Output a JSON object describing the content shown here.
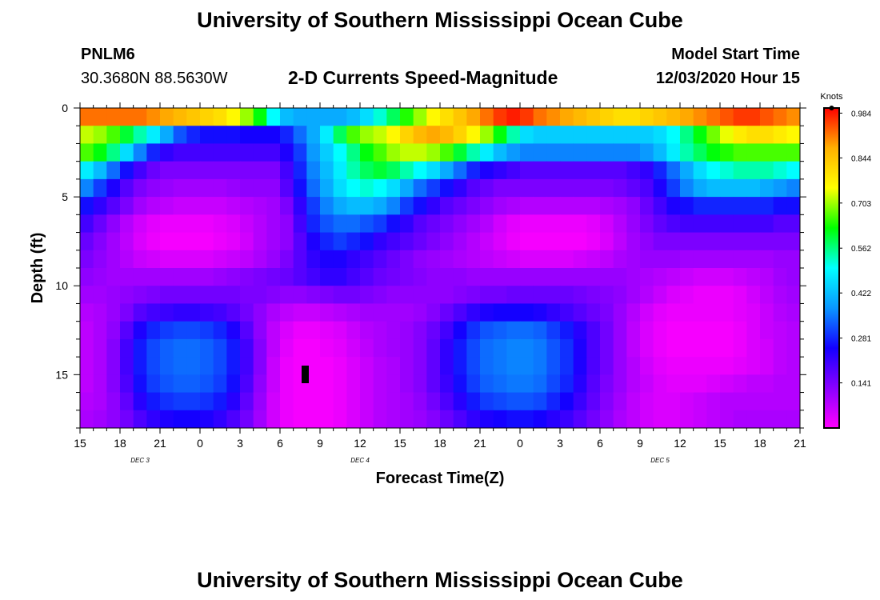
{
  "header": {
    "title": "University of Southern Mississippi Ocean Cube",
    "station": "PNLM6",
    "coords": "30.3680N 88.5630W",
    "subtitle": "2-D Currents Speed-Magnitude",
    "model_label": "Model Start Time",
    "model_time": "12/03/2020 Hour 15"
  },
  "footer": {
    "title": "University of Southern Mississippi Ocean Cube"
  },
  "chart_data": {
    "type": "heatmap",
    "title": "2-D Currents Speed-Magnitude",
    "xlabel": "Forecast Time(Z)",
    "ylabel": "Depth (ft)",
    "x_tick_labels": [
      "15",
      "18",
      "21",
      "0",
      "3",
      "6",
      "9",
      "12",
      "15",
      "18",
      "21",
      "0",
      "3",
      "6",
      "9",
      "12",
      "15",
      "18",
      "21"
    ],
    "x_hours": [
      0,
      54
    ],
    "date_labels": [
      {
        "label": "DEC 3",
        "hour": 4.5
      },
      {
        "label": "DEC 4",
        "hour": 21
      },
      {
        "label": "DEC 5",
        "hour": 43.5
      }
    ],
    "y_ticks": [
      0,
      5,
      10,
      15
    ],
    "y_range": [
      0,
      18
    ],
    "y_reversed": true,
    "colorbar": {
      "title": "Knots",
      "ticks": [
        "0.984",
        "0.844",
        "0.703",
        "0.562",
        "0.422",
        "0.281",
        "0.141"
      ],
      "tick_values": [
        0.984,
        0.844,
        0.703,
        0.562,
        0.422,
        0.281,
        0.141
      ],
      "range": [
        0.0,
        1.0
      ]
    },
    "colorscale": [
      "#ff00ff",
      "#8a00ff",
      "#1400ff",
      "#0a96ff",
      "#00ffff",
      "#00ff00",
      "#ffff00",
      "#ffb000",
      "#ff0000"
    ],
    "columns": 54,
    "rows": [
      {
        "depth": 0,
        "values": [
          0.92,
          0.92,
          0.92,
          0.92,
          0.92,
          0.9,
          0.88,
          0.86,
          0.84,
          0.82,
          0.8,
          0.76,
          0.7,
          0.62,
          0.5,
          0.42,
          0.4,
          0.4,
          0.4,
          0.4,
          0.42,
          0.46,
          0.52,
          0.58,
          0.64,
          0.7,
          0.76,
          0.8,
          0.84,
          0.88,
          0.92,
          0.96,
          0.98,
          0.96,
          0.92,
          0.9,
          0.88,
          0.86,
          0.84,
          0.82,
          0.8,
          0.8,
          0.82,
          0.84,
          0.86,
          0.88,
          0.9,
          0.92,
          0.94,
          0.96,
          0.96,
          0.94,
          0.92,
          0.9
        ]
      },
      {
        "depth": 1,
        "values": [
          0.72,
          0.7,
          0.66,
          0.6,
          0.54,
          0.48,
          0.4,
          0.32,
          0.28,
          0.26,
          0.26,
          0.26,
          0.25,
          0.25,
          0.25,
          0.28,
          0.34,
          0.4,
          0.48,
          0.58,
          0.66,
          0.7,
          0.72,
          0.76,
          0.82,
          0.86,
          0.88,
          0.86,
          0.82,
          0.76,
          0.7,
          0.62,
          0.54,
          0.46,
          0.44,
          0.44,
          0.44,
          0.44,
          0.44,
          0.44,
          0.44,
          0.44,
          0.44,
          0.46,
          0.5,
          0.56,
          0.62,
          0.68,
          0.74,
          0.78,
          0.8,
          0.8,
          0.78,
          0.76
        ]
      },
      {
        "depth": 2,
        "values": [
          0.66,
          0.62,
          0.56,
          0.46,
          0.36,
          0.28,
          0.22,
          0.2,
          0.2,
          0.2,
          0.2,
          0.2,
          0.2,
          0.2,
          0.2,
          0.24,
          0.3,
          0.38,
          0.44,
          0.5,
          0.56,
          0.62,
          0.66,
          0.7,
          0.72,
          0.72,
          0.7,
          0.66,
          0.6,
          0.54,
          0.48,
          0.42,
          0.38,
          0.36,
          0.36,
          0.36,
          0.36,
          0.36,
          0.36,
          0.36,
          0.36,
          0.36,
          0.38,
          0.42,
          0.48,
          0.54,
          0.58,
          0.62,
          0.64,
          0.66,
          0.66,
          0.66,
          0.66,
          0.66
        ]
      },
      {
        "depth": 3,
        "values": [
          0.48,
          0.42,
          0.34,
          0.26,
          0.2,
          0.16,
          0.14,
          0.14,
          0.14,
          0.14,
          0.14,
          0.14,
          0.14,
          0.14,
          0.14,
          0.2,
          0.28,
          0.36,
          0.42,
          0.48,
          0.54,
          0.58,
          0.6,
          0.58,
          0.54,
          0.5,
          0.46,
          0.4,
          0.34,
          0.28,
          0.24,
          0.22,
          0.2,
          0.18,
          0.18,
          0.18,
          0.18,
          0.18,
          0.18,
          0.18,
          0.18,
          0.2,
          0.22,
          0.28,
          0.34,
          0.4,
          0.46,
          0.5,
          0.52,
          0.54,
          0.54,
          0.54,
          0.52,
          0.5
        ]
      },
      {
        "depth": 4,
        "values": [
          0.36,
          0.3,
          0.24,
          0.18,
          0.14,
          0.12,
          0.11,
          0.1,
          0.1,
          0.1,
          0.1,
          0.11,
          0.12,
          0.12,
          0.12,
          0.18,
          0.26,
          0.34,
          0.4,
          0.46,
          0.5,
          0.52,
          0.5,
          0.46,
          0.4,
          0.34,
          0.3,
          0.26,
          0.22,
          0.18,
          0.16,
          0.14,
          0.14,
          0.14,
          0.14,
          0.14,
          0.14,
          0.14,
          0.14,
          0.14,
          0.15,
          0.17,
          0.19,
          0.24,
          0.3,
          0.36,
          0.4,
          0.42,
          0.42,
          0.42,
          0.42,
          0.4,
          0.38,
          0.36
        ]
      },
      {
        "depth": 5,
        "values": [
          0.26,
          0.22,
          0.18,
          0.14,
          0.1,
          0.08,
          0.07,
          0.06,
          0.06,
          0.06,
          0.06,
          0.07,
          0.08,
          0.09,
          0.1,
          0.14,
          0.22,
          0.3,
          0.36,
          0.4,
          0.42,
          0.42,
          0.4,
          0.36,
          0.3,
          0.26,
          0.22,
          0.18,
          0.16,
          0.14,
          0.12,
          0.1,
          0.09,
          0.08,
          0.08,
          0.08,
          0.08,
          0.08,
          0.08,
          0.09,
          0.1,
          0.12,
          0.16,
          0.2,
          0.24,
          0.26,
          0.28,
          0.28,
          0.28,
          0.28,
          0.28,
          0.28,
          0.26,
          0.26
        ]
      },
      {
        "depth": 6,
        "values": [
          0.2,
          0.16,
          0.12,
          0.08,
          0.05,
          0.03,
          0.02,
          0.02,
          0.02,
          0.02,
          0.03,
          0.04,
          0.06,
          0.08,
          0.1,
          0.12,
          0.2,
          0.28,
          0.32,
          0.34,
          0.34,
          0.32,
          0.3,
          0.26,
          0.22,
          0.18,
          0.16,
          0.14,
          0.12,
          0.1,
          0.08,
          0.05,
          0.03,
          0.02,
          0.02,
          0.02,
          0.02,
          0.02,
          0.03,
          0.05,
          0.08,
          0.11,
          0.14,
          0.17,
          0.19,
          0.2,
          0.2,
          0.2,
          0.2,
          0.2,
          0.2,
          0.2,
          0.18,
          0.18
        ]
      },
      {
        "depth": 7,
        "values": [
          0.16,
          0.13,
          0.1,
          0.07,
          0.04,
          0.02,
          0.01,
          0.01,
          0.01,
          0.01,
          0.02,
          0.03,
          0.05,
          0.08,
          0.1,
          0.12,
          0.18,
          0.24,
          0.28,
          0.3,
          0.28,
          0.26,
          0.22,
          0.2,
          0.18,
          0.16,
          0.14,
          0.12,
          0.1,
          0.08,
          0.06,
          0.04,
          0.02,
          0.01,
          0.01,
          0.01,
          0.01,
          0.01,
          0.02,
          0.04,
          0.07,
          0.1,
          0.12,
          0.14,
          0.14,
          0.14,
          0.14,
          0.14,
          0.14,
          0.14,
          0.14,
          0.14,
          0.14,
          0.14
        ]
      },
      {
        "depth": 8,
        "values": [
          0.14,
          0.12,
          0.1,
          0.08,
          0.06,
          0.05,
          0.04,
          0.04,
          0.04,
          0.04,
          0.05,
          0.06,
          0.07,
          0.09,
          0.11,
          0.14,
          0.18,
          0.22,
          0.24,
          0.24,
          0.22,
          0.2,
          0.18,
          0.16,
          0.14,
          0.12,
          0.11,
          0.1,
          0.09,
          0.08,
          0.07,
          0.06,
          0.05,
          0.04,
          0.04,
          0.04,
          0.04,
          0.05,
          0.06,
          0.07,
          0.09,
          0.1,
          0.11,
          0.11,
          0.11,
          0.1,
          0.1,
          0.1,
          0.1,
          0.1,
          0.1,
          0.1,
          0.11,
          0.11
        ]
      },
      {
        "depth": 9,
        "values": [
          0.12,
          0.11,
          0.1,
          0.1,
          0.1,
          0.1,
          0.1,
          0.1,
          0.1,
          0.1,
          0.11,
          0.12,
          0.13,
          0.14,
          0.15,
          0.16,
          0.18,
          0.2,
          0.22,
          0.22,
          0.2,
          0.18,
          0.16,
          0.15,
          0.14,
          0.13,
          0.12,
          0.12,
          0.12,
          0.11,
          0.11,
          0.11,
          0.11,
          0.11,
          0.11,
          0.11,
          0.11,
          0.11,
          0.11,
          0.11,
          0.11,
          0.1,
          0.09,
          0.08,
          0.07,
          0.06,
          0.05,
          0.05,
          0.05,
          0.06,
          0.07,
          0.08,
          0.1,
          0.11
        ]
      },
      {
        "depth": 10,
        "values": [
          0.1,
          0.1,
          0.11,
          0.12,
          0.13,
          0.14,
          0.15,
          0.15,
          0.15,
          0.15,
          0.15,
          0.15,
          0.14,
          0.14,
          0.13,
          0.12,
          0.12,
          0.13,
          0.14,
          0.15,
          0.15,
          0.14,
          0.13,
          0.12,
          0.12,
          0.12,
          0.12,
          0.12,
          0.13,
          0.14,
          0.15,
          0.15,
          0.16,
          0.16,
          0.16,
          0.16,
          0.16,
          0.15,
          0.14,
          0.13,
          0.12,
          0.1,
          0.08,
          0.06,
          0.04,
          0.03,
          0.02,
          0.02,
          0.02,
          0.03,
          0.05,
          0.07,
          0.09,
          0.1
        ]
      },
      {
        "depth": 11,
        "values": [
          0.08,
          0.09,
          0.11,
          0.14,
          0.18,
          0.2,
          0.21,
          0.22,
          0.22,
          0.21,
          0.2,
          0.18,
          0.15,
          0.12,
          0.09,
          0.07,
          0.06,
          0.06,
          0.07,
          0.08,
          0.09,
          0.1,
          0.1,
          0.1,
          0.1,
          0.11,
          0.13,
          0.16,
          0.19,
          0.22,
          0.24,
          0.25,
          0.25,
          0.25,
          0.24,
          0.22,
          0.2,
          0.18,
          0.16,
          0.14,
          0.11,
          0.08,
          0.05,
          0.03,
          0.02,
          0.02,
          0.02,
          0.02,
          0.02,
          0.03,
          0.04,
          0.06,
          0.08,
          0.09
        ]
      },
      {
        "depth": 12,
        "values": [
          0.07,
          0.09,
          0.12,
          0.18,
          0.24,
          0.28,
          0.3,
          0.31,
          0.31,
          0.3,
          0.28,
          0.24,
          0.18,
          0.12,
          0.07,
          0.04,
          0.02,
          0.02,
          0.03,
          0.04,
          0.06,
          0.08,
          0.09,
          0.1,
          0.11,
          0.13,
          0.16,
          0.2,
          0.25,
          0.29,
          0.32,
          0.33,
          0.34,
          0.34,
          0.33,
          0.3,
          0.27,
          0.23,
          0.19,
          0.15,
          0.11,
          0.07,
          0.04,
          0.02,
          0.01,
          0.01,
          0.01,
          0.01,
          0.01,
          0.02,
          0.04,
          0.06,
          0.07,
          0.08
        ]
      },
      {
        "depth": 13,
        "values": [
          0.07,
          0.09,
          0.13,
          0.2,
          0.27,
          0.31,
          0.33,
          0.34,
          0.34,
          0.33,
          0.31,
          0.27,
          0.2,
          0.13,
          0.07,
          0.03,
          0.01,
          0.01,
          0.02,
          0.03,
          0.05,
          0.07,
          0.09,
          0.1,
          0.11,
          0.13,
          0.17,
          0.22,
          0.27,
          0.31,
          0.34,
          0.35,
          0.36,
          0.36,
          0.35,
          0.32,
          0.29,
          0.24,
          0.19,
          0.15,
          0.11,
          0.07,
          0.04,
          0.02,
          0.01,
          0.01,
          0.01,
          0.01,
          0.01,
          0.02,
          0.04,
          0.05,
          0.07,
          0.08
        ]
      },
      {
        "depth": 14,
        "values": [
          0.07,
          0.09,
          0.13,
          0.2,
          0.27,
          0.31,
          0.33,
          0.34,
          0.34,
          0.33,
          0.31,
          0.27,
          0.2,
          0.13,
          0.06,
          0.02,
          0.01,
          0.01,
          0.01,
          0.02,
          0.04,
          0.06,
          0.08,
          0.09,
          0.11,
          0.13,
          0.17,
          0.22,
          0.27,
          0.31,
          0.34,
          0.35,
          0.36,
          0.36,
          0.35,
          0.32,
          0.29,
          0.24,
          0.19,
          0.15,
          0.11,
          0.08,
          0.05,
          0.03,
          0.02,
          0.02,
          0.02,
          0.02,
          0.02,
          0.03,
          0.04,
          0.05,
          0.07,
          0.08
        ]
      },
      {
        "depth": 15,
        "values": [
          0.07,
          0.09,
          0.13,
          0.19,
          0.26,
          0.3,
          0.32,
          0.33,
          0.33,
          0.32,
          0.3,
          0.26,
          0.19,
          0.12,
          0.06,
          0.02,
          0.01,
          0.01,
          0.01,
          0.02,
          0.04,
          0.06,
          0.08,
          0.09,
          0.11,
          0.13,
          0.17,
          0.21,
          0.26,
          0.3,
          0.33,
          0.34,
          0.35,
          0.35,
          0.34,
          0.31,
          0.28,
          0.23,
          0.18,
          0.14,
          0.11,
          0.08,
          0.06,
          0.04,
          0.03,
          0.03,
          0.03,
          0.04,
          0.05,
          0.06,
          0.07,
          0.07,
          0.08,
          0.08
        ]
      },
      {
        "depth": 16,
        "values": [
          0.08,
          0.09,
          0.12,
          0.17,
          0.23,
          0.27,
          0.29,
          0.3,
          0.3,
          0.29,
          0.27,
          0.23,
          0.17,
          0.11,
          0.05,
          0.02,
          0.01,
          0.01,
          0.01,
          0.02,
          0.04,
          0.06,
          0.08,
          0.09,
          0.1,
          0.12,
          0.15,
          0.19,
          0.23,
          0.27,
          0.3,
          0.31,
          0.32,
          0.32,
          0.31,
          0.28,
          0.25,
          0.21,
          0.17,
          0.13,
          0.1,
          0.07,
          0.05,
          0.04,
          0.04,
          0.05,
          0.06,
          0.07,
          0.08,
          0.08,
          0.08,
          0.08,
          0.08,
          0.08
        ]
      },
      {
        "depth": 17,
        "values": [
          0.09,
          0.1,
          0.12,
          0.15,
          0.19,
          0.22,
          0.24,
          0.25,
          0.25,
          0.24,
          0.22,
          0.19,
          0.15,
          0.1,
          0.05,
          0.02,
          0.01,
          0.01,
          0.01,
          0.02,
          0.04,
          0.06,
          0.08,
          0.09,
          0.1,
          0.11,
          0.13,
          0.16,
          0.19,
          0.22,
          0.24,
          0.25,
          0.26,
          0.26,
          0.25,
          0.23,
          0.21,
          0.18,
          0.15,
          0.12,
          0.09,
          0.07,
          0.05,
          0.04,
          0.04,
          0.05,
          0.06,
          0.07,
          0.08,
          0.09,
          0.09,
          0.09,
          0.09,
          0.09
        ]
      }
    ]
  }
}
